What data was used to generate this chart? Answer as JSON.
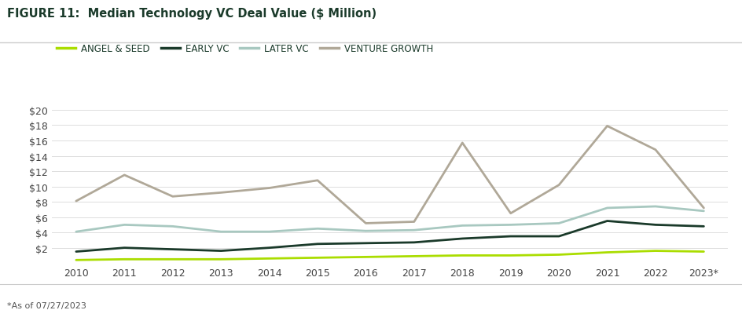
{
  "title": "FIGURE 11:  Median Technology VC Deal Value ($ Million)",
  "footnote": "*As of 07/27/2023",
  "years": [
    2010,
    2011,
    2012,
    2013,
    2014,
    2015,
    2016,
    2017,
    2018,
    2019,
    2020,
    2021,
    2022,
    2023
  ],
  "x_labels": [
    "2010",
    "2011",
    "2012",
    "2013",
    "2014",
    "2015",
    "2016",
    "2017",
    "2018",
    "2019",
    "2020",
    "2021",
    "2022",
    "2023*"
  ],
  "series_order": [
    "ANGEL & SEED",
    "EARLY VC",
    "LATER VC",
    "VENTURE GROWTH"
  ],
  "series": {
    "ANGEL & SEED": {
      "values": [
        0.4,
        0.5,
        0.5,
        0.5,
        0.6,
        0.7,
        0.8,
        0.9,
        1.0,
        1.0,
        1.1,
        1.4,
        1.6,
        1.5
      ],
      "color": "#aadd00",
      "linewidth": 2.0
    },
    "EARLY VC": {
      "values": [
        1.5,
        2.0,
        1.8,
        1.6,
        2.0,
        2.5,
        2.6,
        2.7,
        3.2,
        3.5,
        3.5,
        5.5,
        5.0,
        4.8
      ],
      "color": "#1a3a2a",
      "linewidth": 2.0
    },
    "LATER VC": {
      "values": [
        4.1,
        5.0,
        4.8,
        4.1,
        4.1,
        4.5,
        4.2,
        4.3,
        4.9,
        5.0,
        5.2,
        7.2,
        7.4,
        6.8
      ],
      "color": "#a8c8c0",
      "linewidth": 2.0
    },
    "VENTURE GROWTH": {
      "values": [
        8.1,
        11.5,
        8.7,
        9.2,
        9.8,
        10.8,
        5.2,
        5.4,
        15.7,
        6.5,
        10.2,
        17.9,
        14.8,
        7.2
      ],
      "color": "#b0a898",
      "linewidth": 2.0
    }
  },
  "ylim": [
    0,
    21
  ],
  "yticks": [
    2,
    4,
    6,
    8,
    10,
    12,
    14,
    16,
    18,
    20
  ],
  "ytick_labels": [
    "$2",
    "$4",
    "$6",
    "$8",
    "$10",
    "$12",
    "$14",
    "$16",
    "$18",
    "$20"
  ],
  "background_color": "#ffffff",
  "plot_bg_color": "#ffffff",
  "title_fontsize": 10.5,
  "legend_fontsize": 8.5,
  "tick_fontsize": 9,
  "footnote_fontsize": 8,
  "title_color": "#1a3a2a",
  "grid_color": "#dddddd",
  "separator_color": "#cccccc",
  "tick_color": "#444444"
}
